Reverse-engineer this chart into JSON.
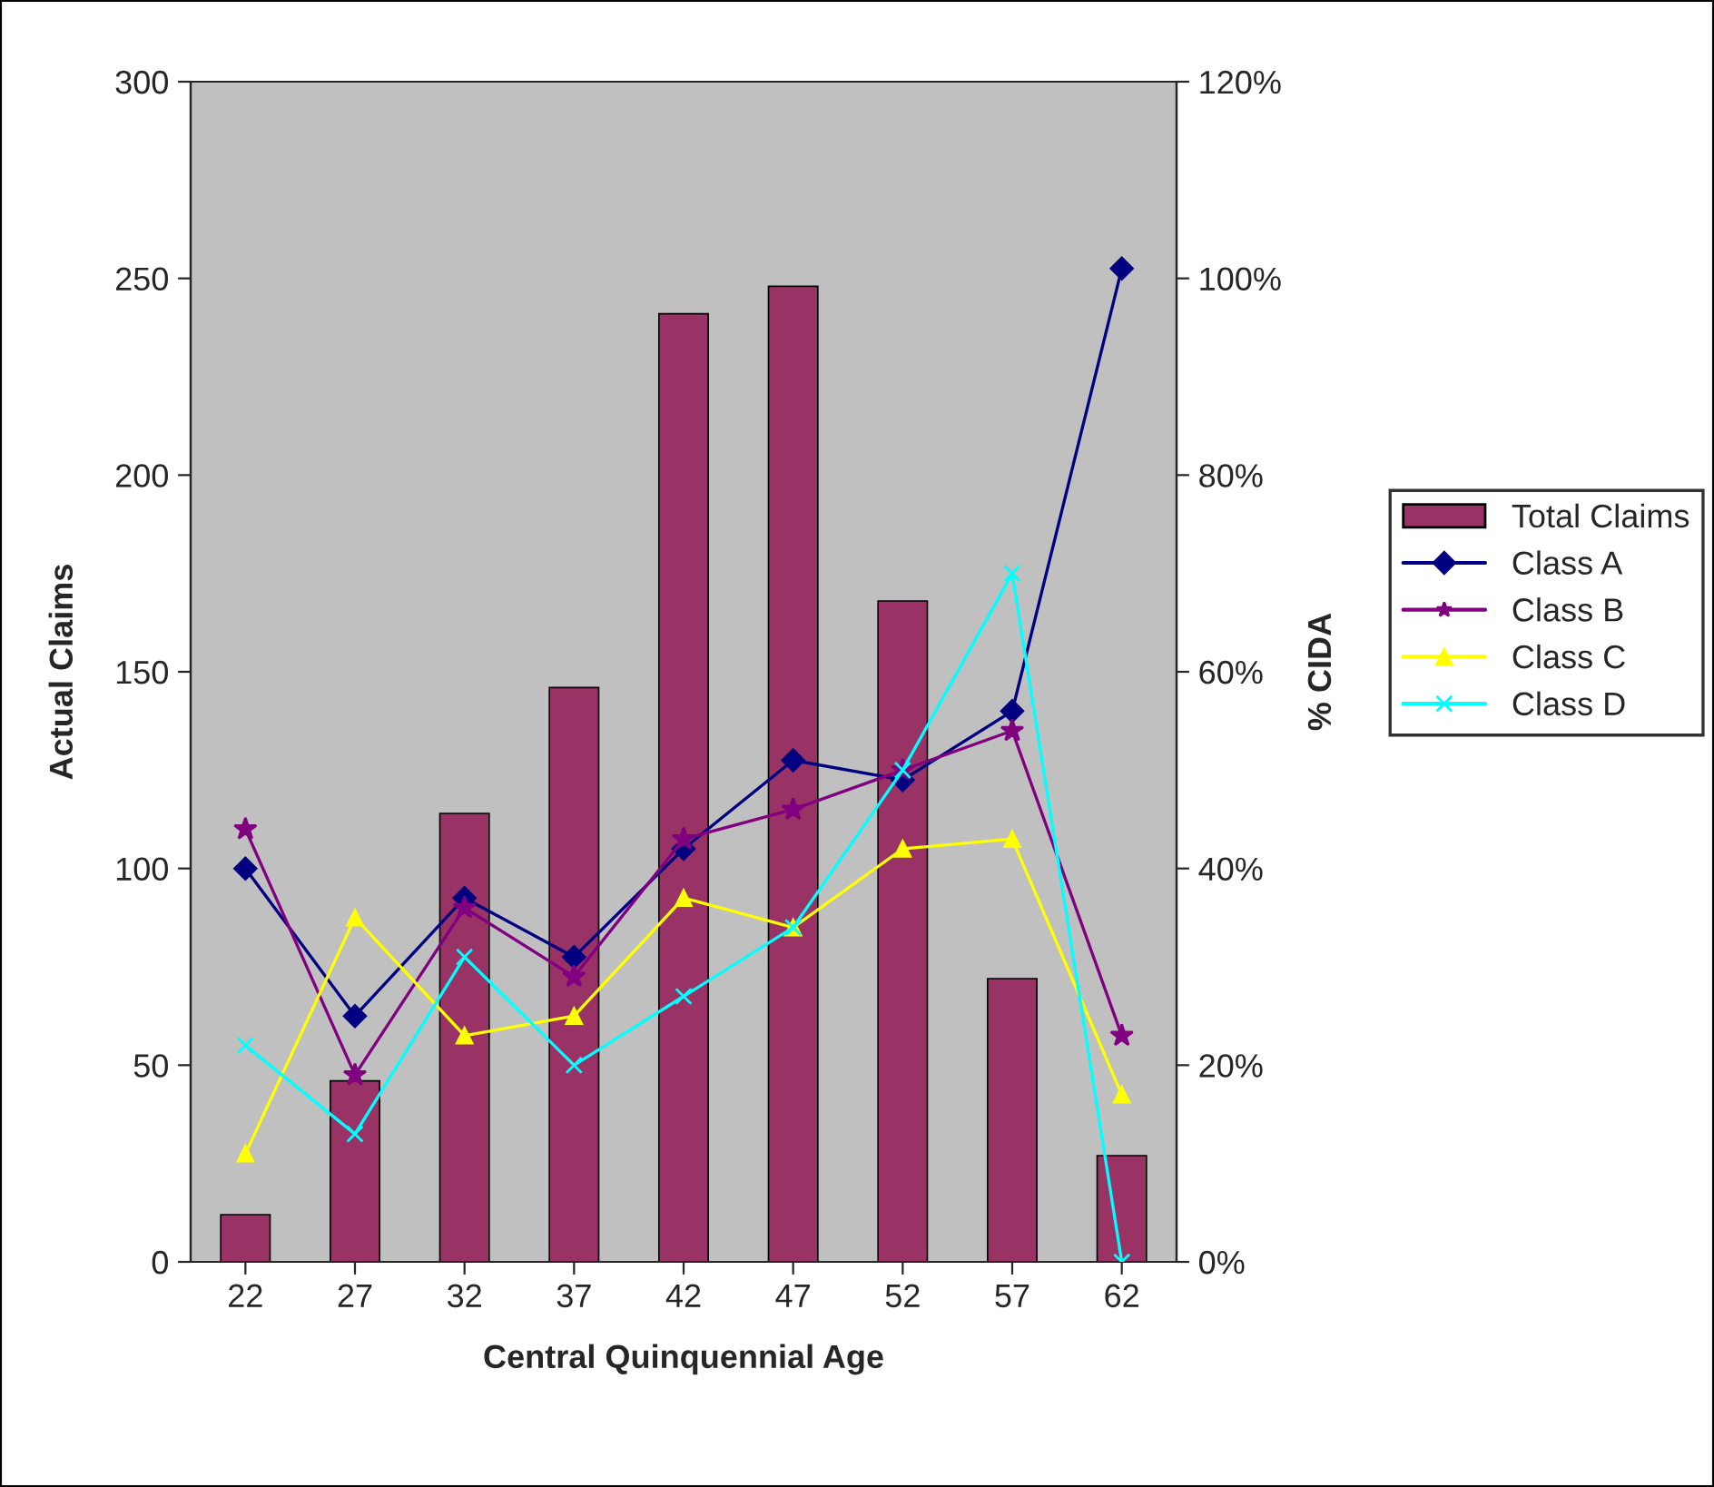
{
  "chart_data": {
    "type": "bar",
    "xlabel": "Central Quinquennial Age",
    "ylabel": "Actual Claims",
    "y2label": "% CIDA",
    "categories": [
      "22",
      "27",
      "32",
      "37",
      "42",
      "47",
      "52",
      "57",
      "62"
    ],
    "series": [
      {
        "name": "Total Claims",
        "color": "#993366",
        "values": [
          12,
          46,
          114,
          146,
          241,
          248,
          168,
          72,
          27
        ]
      },
      {
        "name": "Class A",
        "type": "line",
        "axis": "y2",
        "marker": "diamond",
        "color": "#000080",
        "values": [
          40,
          25,
          37,
          31,
          42,
          51,
          49,
          56,
          101
        ]
      },
      {
        "name": "Class B",
        "type": "line",
        "axis": "y2",
        "marker": "star",
        "color": "#800080",
        "values": [
          44,
          19,
          36,
          29,
          43,
          46,
          50,
          54,
          23
        ]
      },
      {
        "name": "Class C",
        "type": "line",
        "axis": "y2",
        "marker": "triangle",
        "color": "#ffff00",
        "values": [
          11,
          35,
          23,
          25,
          37,
          34,
          42,
          43,
          17
        ]
      },
      {
        "name": "Class D",
        "type": "line",
        "axis": "y2",
        "marker": "cross",
        "color": "#00ffff",
        "values": [
          22,
          13,
          31,
          20,
          27,
          34,
          50,
          70,
          0
        ]
      }
    ],
    "ylim": [
      0,
      300
    ],
    "yticks": [
      0,
      50,
      100,
      150,
      200,
      250,
      300
    ],
    "y2lim": [
      0,
      120
    ],
    "y2ticks": [
      {
        "value": 0,
        "label": "0%"
      },
      {
        "value": 20,
        "label": "20%"
      },
      {
        "value": 40,
        "label": "40%"
      },
      {
        "value": 60,
        "label": "60%"
      },
      {
        "value": 80,
        "label": "80%"
      },
      {
        "value": 100,
        "label": "100%"
      },
      {
        "value": 120,
        "label": "120%"
      }
    ],
    "grid": false,
    "legend": "right"
  }
}
